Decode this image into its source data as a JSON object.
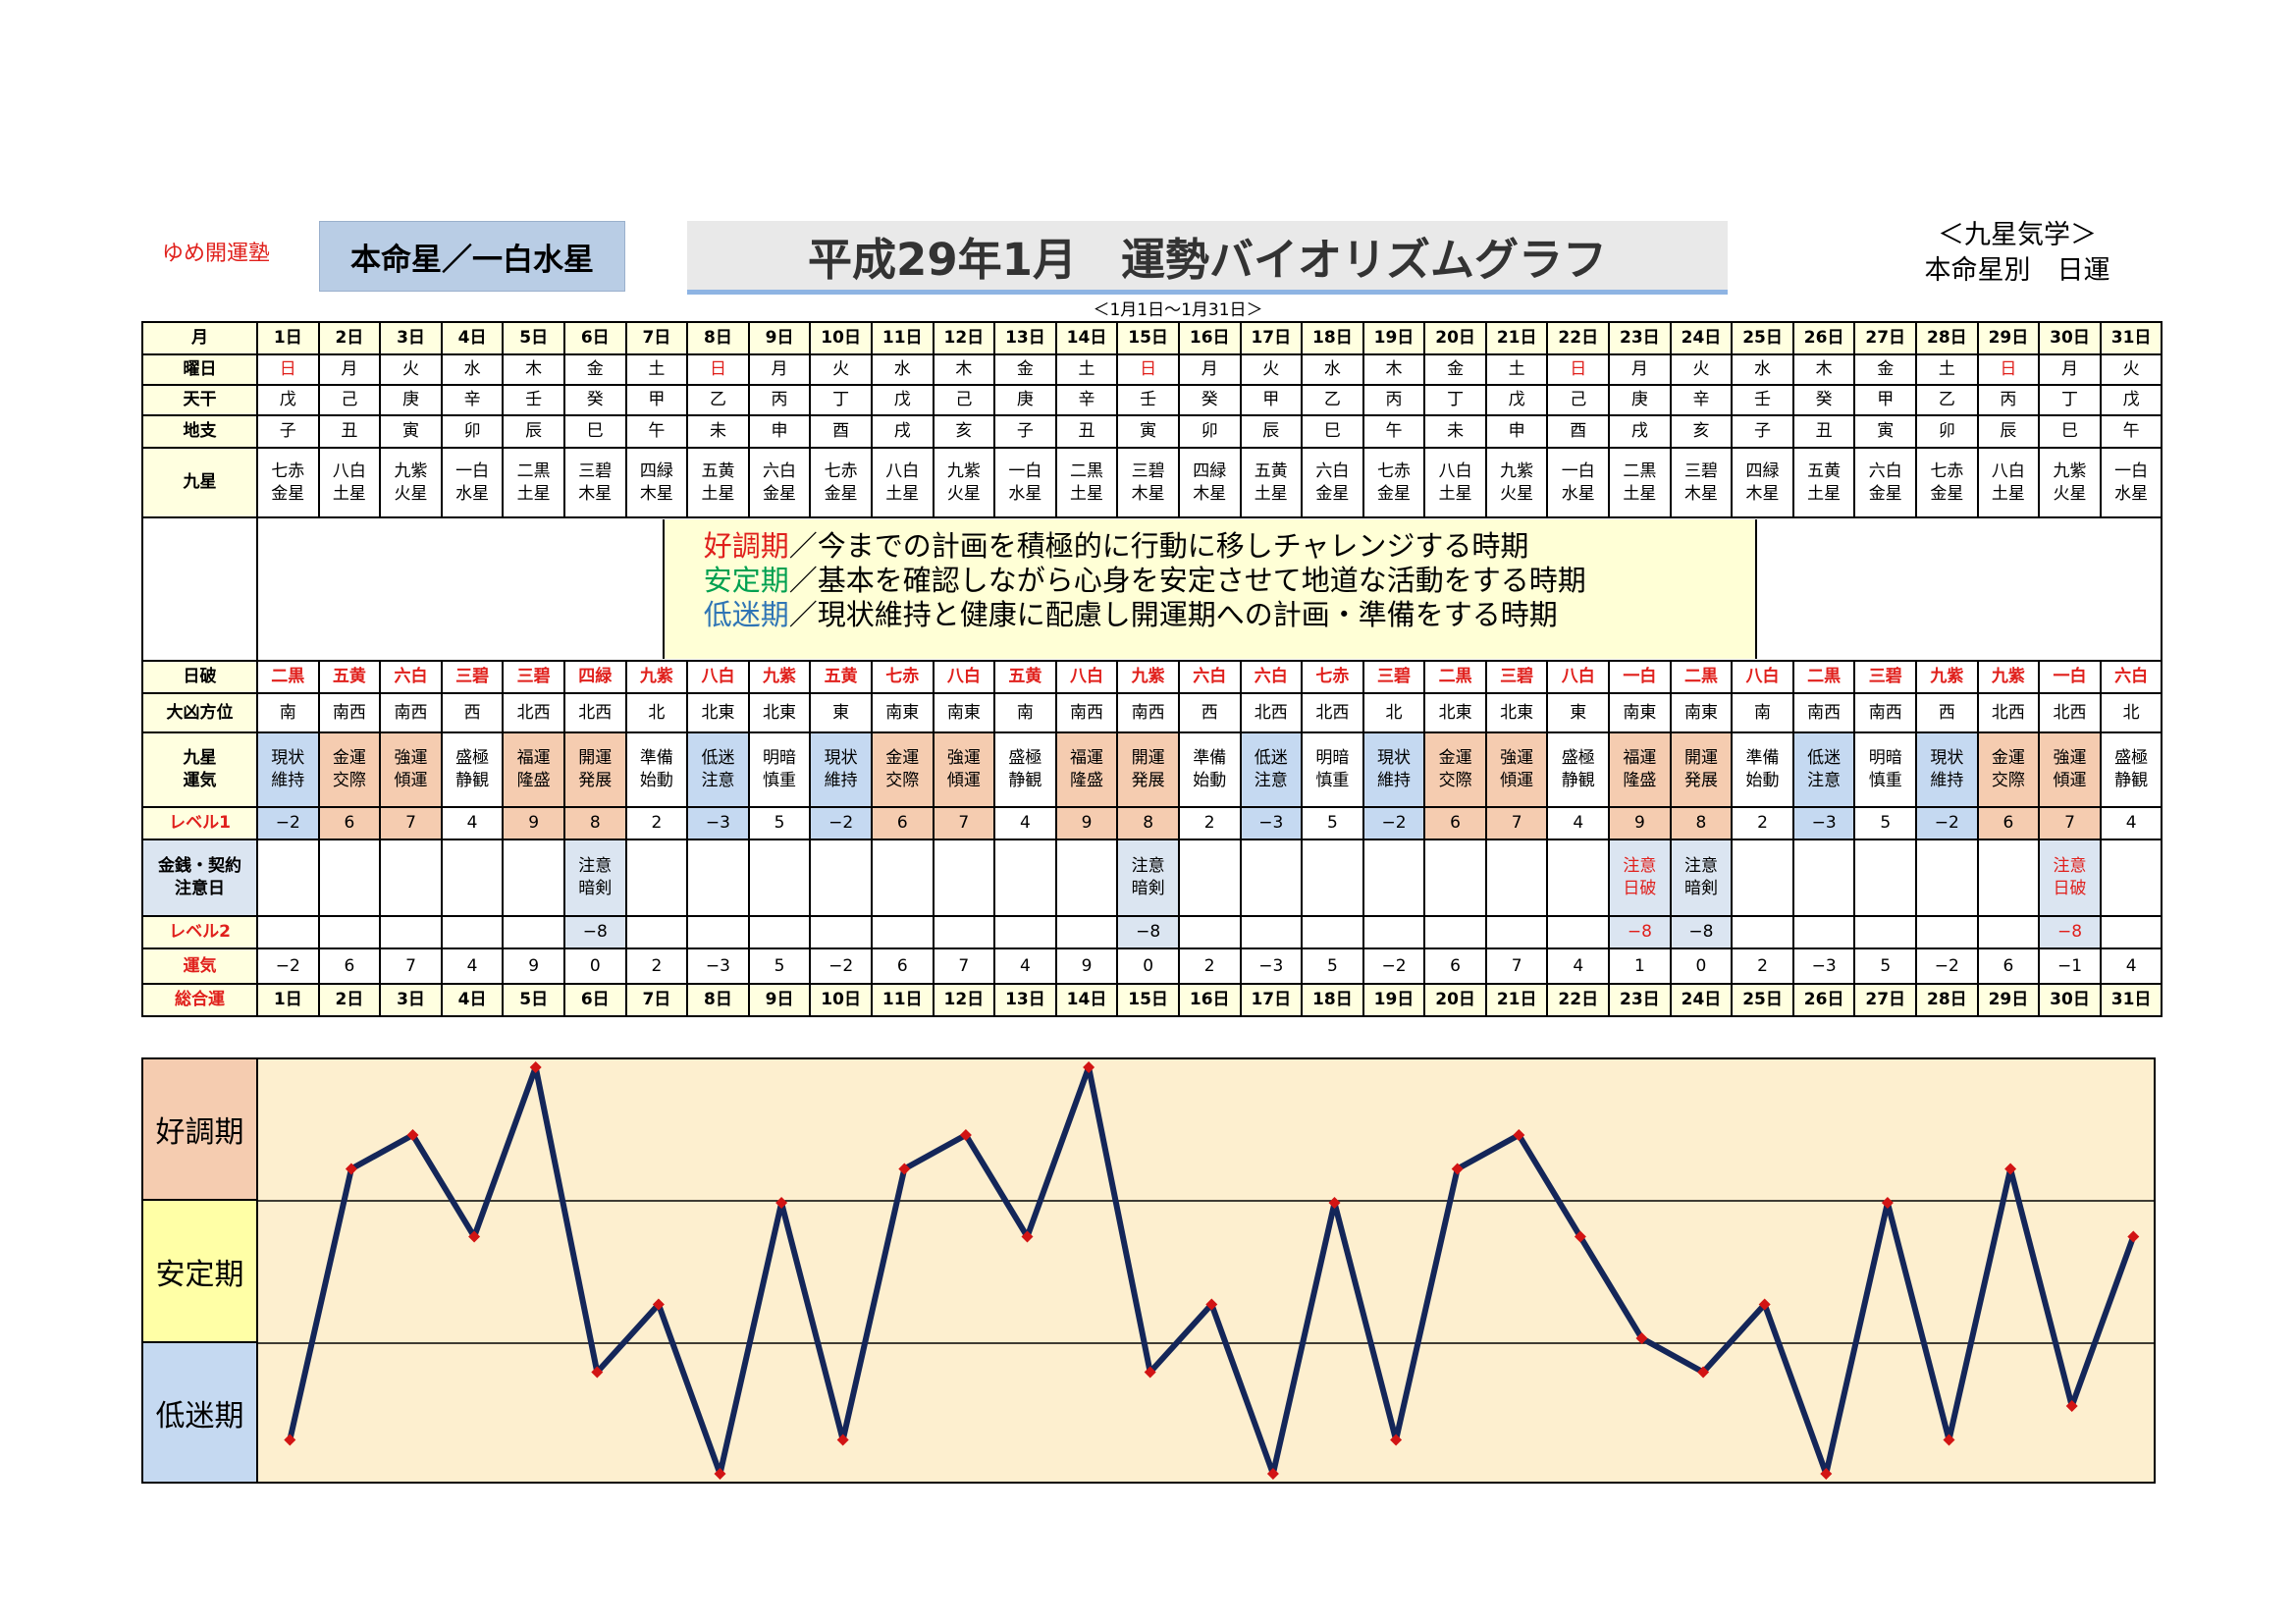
{
  "header": {
    "brand": "ゆめ開運塾",
    "star": "本命星／一白水星",
    "title": "平成29年1月　運勢バイオリズムグラフ",
    "kyusei_line1": "＜九星気学＞",
    "kyusei_line2": "本命星別　日運",
    "range": "＜1月1日～1月31日＞"
  },
  "labels": {
    "month": "月",
    "weekday": "曜日",
    "tenkan": "天干",
    "chishi": "地支",
    "kyusei": "九星",
    "nippa": "日破",
    "houi": "大凶方位",
    "unki_a": "九星",
    "unki_b": "運気",
    "level1": "レベル1",
    "caution_a": "金銭・契約",
    "caution_b": "注意日",
    "level2": "レベル2",
    "total_a": "運気",
    "total_b": "総合運"
  },
  "message": {
    "line1_key": "好調期",
    "line1_text": "／今までの計画を積極的に行動に移しチャレンジする時期",
    "line2_key": "安定期",
    "line2_text": "／基本を確認しながら心身を安定させて地道な活動をする時期",
    "line3_key": "低迷期",
    "line3_text": "／現状維持と健康に配慮し開運期への計画・準備をする時期"
  },
  "bands": {
    "good": "好調期",
    "stable": "安定期",
    "low": "低迷期"
  },
  "colors": {
    "red": "#e0201c",
    "yellow": "#ffffe0",
    "peach": "#f5ccb0",
    "blue": "#c5d9f1",
    "light_blue": "#dbe5f1",
    "graph_bg": "#fdefcf",
    "line": "#142659",
    "marker": "#d21414"
  },
  "days": [
    {
      "d": "1日",
      "w": "日",
      "t": "戊",
      "c": "子",
      "k1": "七赤",
      "k2": "金星",
      "h": "二黒",
      "dir": "南",
      "u1": "現状",
      "u2": "維持",
      "ut": "b",
      "l1": "−2",
      "c1": "",
      "c2": "",
      "cr": false,
      "l2": "",
      "l2r": false,
      "tot": "−2",
      "v": -2
    },
    {
      "d": "2日",
      "w": "月",
      "t": "己",
      "c": "丑",
      "k1": "八白",
      "k2": "土星",
      "h": "五黄",
      "dir": "南西",
      "u1": "金運",
      "u2": "交際",
      "ut": "p",
      "l1": "6",
      "c1": "",
      "c2": "",
      "cr": false,
      "l2": "",
      "l2r": false,
      "tot": "6",
      "v": 6
    },
    {
      "d": "3日",
      "w": "火",
      "t": "庚",
      "c": "寅",
      "k1": "九紫",
      "k2": "火星",
      "h": "六白",
      "dir": "南西",
      "u1": "強運",
      "u2": "傾運",
      "ut": "p",
      "l1": "7",
      "c1": "",
      "c2": "",
      "cr": false,
      "l2": "",
      "l2r": false,
      "tot": "7",
      "v": 7
    },
    {
      "d": "4日",
      "w": "水",
      "t": "辛",
      "c": "卯",
      "k1": "一白",
      "k2": "水星",
      "h": "三碧",
      "dir": "西",
      "u1": "盛極",
      "u2": "静観",
      "ut": "n",
      "l1": "4",
      "c1": "",
      "c2": "",
      "cr": false,
      "l2": "",
      "l2r": false,
      "tot": "4",
      "v": 4
    },
    {
      "d": "5日",
      "w": "木",
      "t": "壬",
      "c": "辰",
      "k1": "二黒",
      "k2": "土星",
      "h": "三碧",
      "dir": "北西",
      "u1": "福運",
      "u2": "隆盛",
      "ut": "p",
      "l1": "9",
      "c1": "",
      "c2": "",
      "cr": false,
      "l2": "",
      "l2r": false,
      "tot": "9",
      "v": 9
    },
    {
      "d": "6日",
      "w": "金",
      "t": "癸",
      "c": "巳",
      "k1": "三碧",
      "k2": "木星",
      "h": "四緑",
      "dir": "北西",
      "u1": "開運",
      "u2": "発展",
      "ut": "p",
      "l1": "8",
      "c1": "注意",
      "c2": "暗剣",
      "cr": false,
      "l2": "−8",
      "l2r": false,
      "tot": "0",
      "v": 0
    },
    {
      "d": "7日",
      "w": "土",
      "t": "甲",
      "c": "午",
      "k1": "四緑",
      "k2": "木星",
      "h": "九紫",
      "dir": "北",
      "u1": "準備",
      "u2": "始動",
      "ut": "n",
      "l1": "2",
      "c1": "",
      "c2": "",
      "cr": false,
      "l2": "",
      "l2r": false,
      "tot": "2",
      "v": 2
    },
    {
      "d": "8日",
      "w": "日",
      "t": "乙",
      "c": "未",
      "k1": "五黄",
      "k2": "土星",
      "h": "八白",
      "dir": "北東",
      "u1": "低迷",
      "u2": "注意",
      "ut": "b",
      "l1": "−3",
      "c1": "",
      "c2": "",
      "cr": false,
      "l2": "",
      "l2r": false,
      "tot": "−3",
      "v": -3
    },
    {
      "d": "9日",
      "w": "月",
      "t": "丙",
      "c": "申",
      "k1": "六白",
      "k2": "金星",
      "h": "九紫",
      "dir": "北東",
      "u1": "明暗",
      "u2": "慎重",
      "ut": "n",
      "l1": "5",
      "c1": "",
      "c2": "",
      "cr": false,
      "l2": "",
      "l2r": false,
      "tot": "5",
      "v": 5
    },
    {
      "d": "10日",
      "w": "火",
      "t": "丁",
      "c": "酉",
      "k1": "七赤",
      "k2": "金星",
      "h": "五黄",
      "dir": "東",
      "u1": "現状",
      "u2": "維持",
      "ut": "b",
      "l1": "−2",
      "c1": "",
      "c2": "",
      "cr": false,
      "l2": "",
      "l2r": false,
      "tot": "−2",
      "v": -2
    },
    {
      "d": "11日",
      "w": "水",
      "t": "戊",
      "c": "戌",
      "k1": "八白",
      "k2": "土星",
      "h": "七赤",
      "dir": "南東",
      "u1": "金運",
      "u2": "交際",
      "ut": "p",
      "l1": "6",
      "c1": "",
      "c2": "",
      "cr": false,
      "l2": "",
      "l2r": false,
      "tot": "6",
      "v": 6
    },
    {
      "d": "12日",
      "w": "木",
      "t": "己",
      "c": "亥",
      "k1": "九紫",
      "k2": "火星",
      "h": "八白",
      "dir": "南東",
      "u1": "強運",
      "u2": "傾運",
      "ut": "p",
      "l1": "7",
      "c1": "",
      "c2": "",
      "cr": false,
      "l2": "",
      "l2r": false,
      "tot": "7",
      "v": 7
    },
    {
      "d": "13日",
      "w": "金",
      "t": "庚",
      "c": "子",
      "k1": "一白",
      "k2": "水星",
      "h": "五黄",
      "dir": "南",
      "u1": "盛極",
      "u2": "静観",
      "ut": "n",
      "l1": "4",
      "c1": "",
      "c2": "",
      "cr": false,
      "l2": "",
      "l2r": false,
      "tot": "4",
      "v": 4
    },
    {
      "d": "14日",
      "w": "土",
      "t": "辛",
      "c": "丑",
      "k1": "二黒",
      "k2": "土星",
      "h": "八白",
      "dir": "南西",
      "u1": "福運",
      "u2": "隆盛",
      "ut": "p",
      "l1": "9",
      "c1": "",
      "c2": "",
      "cr": false,
      "l2": "",
      "l2r": false,
      "tot": "9",
      "v": 9
    },
    {
      "d": "15日",
      "w": "日",
      "t": "壬",
      "c": "寅",
      "k1": "三碧",
      "k2": "木星",
      "h": "九紫",
      "dir": "南西",
      "u1": "開運",
      "u2": "発展",
      "ut": "p",
      "l1": "8",
      "c1": "注意",
      "c2": "暗剣",
      "cr": false,
      "l2": "−8",
      "l2r": false,
      "tot": "0",
      "v": 0
    },
    {
      "d": "16日",
      "w": "月",
      "t": "癸",
      "c": "卯",
      "k1": "四緑",
      "k2": "木星",
      "h": "六白",
      "dir": "西",
      "u1": "準備",
      "u2": "始動",
      "ut": "n",
      "l1": "2",
      "c1": "",
      "c2": "",
      "cr": false,
      "l2": "",
      "l2r": false,
      "tot": "2",
      "v": 2
    },
    {
      "d": "17日",
      "w": "火",
      "t": "甲",
      "c": "辰",
      "k1": "五黄",
      "k2": "土星",
      "h": "六白",
      "dir": "北西",
      "u1": "低迷",
      "u2": "注意",
      "ut": "b",
      "l1": "−3",
      "c1": "",
      "c2": "",
      "cr": false,
      "l2": "",
      "l2r": false,
      "tot": "−3",
      "v": -3
    },
    {
      "d": "18日",
      "w": "水",
      "t": "乙",
      "c": "巳",
      "k1": "六白",
      "k2": "金星",
      "h": "七赤",
      "dir": "北西",
      "u1": "明暗",
      "u2": "慎重",
      "ut": "n",
      "l1": "5",
      "c1": "",
      "c2": "",
      "cr": false,
      "l2": "",
      "l2r": false,
      "tot": "5",
      "v": 5
    },
    {
      "d": "19日",
      "w": "木",
      "t": "丙",
      "c": "午",
      "k1": "七赤",
      "k2": "金星",
      "h": "三碧",
      "dir": "北",
      "u1": "現状",
      "u2": "維持",
      "ut": "b",
      "l1": "−2",
      "c1": "",
      "c2": "",
      "cr": false,
      "l2": "",
      "l2r": false,
      "tot": "−2",
      "v": -2
    },
    {
      "d": "20日",
      "w": "金",
      "t": "丁",
      "c": "未",
      "k1": "八白",
      "k2": "土星",
      "h": "二黒",
      "dir": "北東",
      "u1": "金運",
      "u2": "交際",
      "ut": "p",
      "l1": "6",
      "c1": "",
      "c2": "",
      "cr": false,
      "l2": "",
      "l2r": false,
      "tot": "6",
      "v": 6
    },
    {
      "d": "21日",
      "w": "土",
      "t": "戊",
      "c": "申",
      "k1": "九紫",
      "k2": "火星",
      "h": "三碧",
      "dir": "北東",
      "u1": "強運",
      "u2": "傾運",
      "ut": "p",
      "l1": "7",
      "c1": "",
      "c2": "",
      "cr": false,
      "l2": "",
      "l2r": false,
      "tot": "7",
      "v": 7
    },
    {
      "d": "22日",
      "w": "日",
      "t": "己",
      "c": "酉",
      "k1": "一白",
      "k2": "水星",
      "h": "八白",
      "dir": "東",
      "u1": "盛極",
      "u2": "静観",
      "ut": "n",
      "l1": "4",
      "c1": "",
      "c2": "",
      "cr": false,
      "l2": "",
      "l2r": false,
      "tot": "4",
      "v": 4
    },
    {
      "d": "23日",
      "w": "月",
      "t": "庚",
      "c": "戌",
      "k1": "二黒",
      "k2": "土星",
      "h": "一白",
      "dir": "南東",
      "u1": "福運",
      "u2": "隆盛",
      "ut": "p",
      "l1": "9",
      "c1": "注意",
      "c2": "日破",
      "cr": true,
      "l2": "−8",
      "l2r": true,
      "tot": "1",
      "v": 1
    },
    {
      "d": "24日",
      "w": "火",
      "t": "辛",
      "c": "亥",
      "k1": "三碧",
      "k2": "木星",
      "h": "二黒",
      "dir": "南東",
      "u1": "開運",
      "u2": "発展",
      "ut": "p",
      "l1": "8",
      "c1": "注意",
      "c2": "暗剣",
      "cr": false,
      "l2": "−8",
      "l2r": false,
      "tot": "0",
      "v": 0
    },
    {
      "d": "25日",
      "w": "水",
      "t": "壬",
      "c": "子",
      "k1": "四緑",
      "k2": "木星",
      "h": "八白",
      "dir": "南",
      "u1": "準備",
      "u2": "始動",
      "ut": "n",
      "l1": "2",
      "c1": "",
      "c2": "",
      "cr": false,
      "l2": "",
      "l2r": false,
      "tot": "2",
      "v": 2
    },
    {
      "d": "26日",
      "w": "木",
      "t": "癸",
      "c": "丑",
      "k1": "五黄",
      "k2": "土星",
      "h": "二黒",
      "dir": "南西",
      "u1": "低迷",
      "u2": "注意",
      "ut": "b",
      "l1": "−3",
      "c1": "",
      "c2": "",
      "cr": false,
      "l2": "",
      "l2r": false,
      "tot": "−3",
      "v": -3
    },
    {
      "d": "27日",
      "w": "金",
      "t": "甲",
      "c": "寅",
      "k1": "六白",
      "k2": "金星",
      "h": "三碧",
      "dir": "南西",
      "u1": "明暗",
      "u2": "慎重",
      "ut": "n",
      "l1": "5",
      "c1": "",
      "c2": "",
      "cr": false,
      "l2": "",
      "l2r": false,
      "tot": "5",
      "v": 5
    },
    {
      "d": "28日",
      "w": "土",
      "t": "乙",
      "c": "卯",
      "k1": "七赤",
      "k2": "金星",
      "h": "九紫",
      "dir": "西",
      "u1": "現状",
      "u2": "維持",
      "ut": "b",
      "l1": "−2",
      "c1": "",
      "c2": "",
      "cr": false,
      "l2": "",
      "l2r": false,
      "tot": "−2",
      "v": -2
    },
    {
      "d": "29日",
      "w": "日",
      "t": "丙",
      "c": "辰",
      "k1": "八白",
      "k2": "土星",
      "h": "九紫",
      "dir": "北西",
      "u1": "金運",
      "u2": "交際",
      "ut": "p",
      "l1": "6",
      "c1": "",
      "c2": "",
      "cr": false,
      "l2": "",
      "l2r": false,
      "tot": "6",
      "v": 6
    },
    {
      "d": "30日",
      "w": "月",
      "t": "丁",
      "c": "巳",
      "k1": "九紫",
      "k2": "火星",
      "h": "一白",
      "dir": "北西",
      "u1": "強運",
      "u2": "傾運",
      "ut": "p",
      "l1": "7",
      "c1": "注意",
      "c2": "日破",
      "cr": true,
      "l2": "−8",
      "l2r": true,
      "tot": "−1",
      "v": -1
    },
    {
      "d": "31日",
      "w": "火",
      "t": "戊",
      "c": "午",
      "k1": "一白",
      "k2": "水星",
      "h": "六白",
      "dir": "北",
      "u1": "盛極",
      "u2": "静観",
      "ut": "n",
      "l1": "4",
      "c1": "",
      "c2": "",
      "cr": false,
      "l2": "",
      "l2r": false,
      "tot": "4",
      "v": 4
    }
  ],
  "chart_data": {
    "type": "line",
    "x": [
      "1日",
      "2日",
      "3日",
      "4日",
      "5日",
      "6日",
      "7日",
      "8日",
      "9日",
      "10日",
      "11日",
      "12日",
      "13日",
      "14日",
      "15日",
      "16日",
      "17日",
      "18日",
      "19日",
      "20日",
      "21日",
      "22日",
      "23日",
      "24日",
      "25日",
      "26日",
      "27日",
      "28日",
      "29日",
      "30日",
      "31日"
    ],
    "series": [
      {
        "values": [
          -2,
          6,
          7,
          4,
          9,
          0,
          2,
          -3,
          5,
          -2,
          6,
          7,
          4,
          9,
          0,
          2,
          -3,
          5,
          -2,
          6,
          7,
          4,
          1,
          0,
          2,
          -3,
          5,
          -2,
          6,
          -1,
          4
        ]
      }
    ],
    "bands": [
      "好調期",
      "安定期",
      "低迷期"
    ],
    "ylim": [
      -3,
      9
    ]
  }
}
